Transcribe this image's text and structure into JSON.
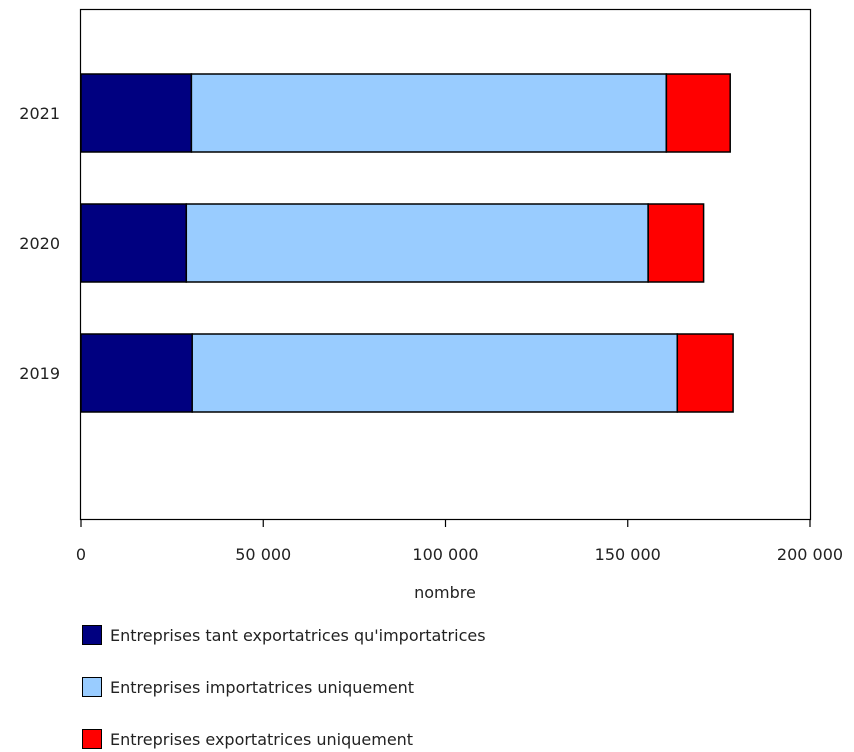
{
  "chart_data": {
    "type": "bar",
    "orientation": "horizontal",
    "stacked": true,
    "categories": [
      "2021",
      "2020",
      "2019"
    ],
    "series": [
      {
        "name": "Entreprises tant exportatrices qu'importatrices",
        "color": "#000080",
        "values": [
          30300,
          28900,
          30500
        ]
      },
      {
        "name": "Entreprises importatrices uniquement",
        "color": "#99CCFF",
        "values": [
          130300,
          126700,
          133100
        ]
      },
      {
        "name": "Entreprises exportatrices uniquement",
        "color": "#FF0000",
        "values": [
          17500,
          15200,
          15300
        ]
      }
    ],
    "xlabel": "nombre",
    "ylabel": "",
    "xlim": [
      0,
      200000
    ],
    "x_ticks": [
      0,
      50000,
      100000,
      150000,
      200000
    ],
    "x_tick_labels": [
      "0",
      "50 000",
      "100 000",
      "150 000",
      "200 000"
    ],
    "grid": false,
    "legend_position": "bottom"
  }
}
